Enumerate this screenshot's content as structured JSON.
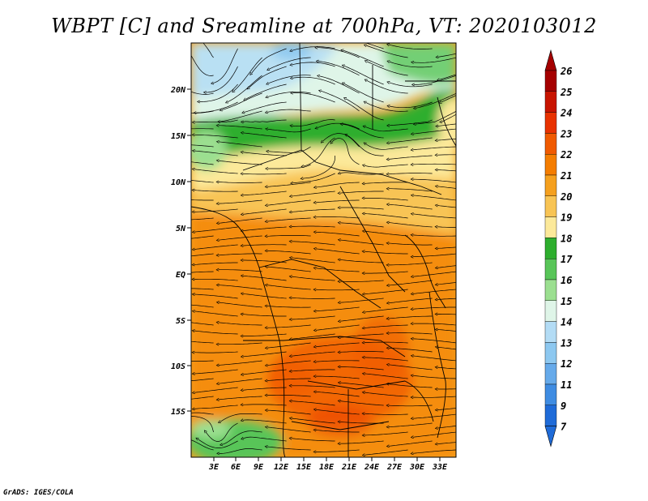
{
  "title": "WBPT [C] and Sreamline at 700hPa, VT: 2020103012",
  "credit": "GrADS: IGES/COLA",
  "map": {
    "lat_labels": [
      "20N",
      "15N",
      "10N",
      "5N",
      "EQ",
      "5S",
      "10S",
      "15S"
    ],
    "lon_labels": [
      "3E",
      "6E",
      "9E",
      "12E",
      "15E",
      "18E",
      "21E",
      "24E",
      "27E",
      "30E",
      "33E"
    ],
    "lon_range": [
      0,
      35
    ],
    "lat_range": [
      -20,
      25
    ]
  },
  "colorbar": {
    "labels": [
      "26",
      "25",
      "24",
      "23",
      "22",
      "21",
      "20",
      "19",
      "18",
      "17",
      "16",
      "15",
      "14",
      "13",
      "12",
      "11",
      "9",
      "7"
    ],
    "colors": [
      "#a50000",
      "#c81400",
      "#e83200",
      "#f05a00",
      "#f47d00",
      "#f5a01e",
      "#f8c454",
      "#fce99a",
      "#2eae2e",
      "#58c558",
      "#9bdf90",
      "#dff5e8",
      "#b3dcf5",
      "#8dc8f0",
      "#66aaea",
      "#3f8ce2",
      "#1f6bd8"
    ],
    "top_arrow_color": "#a50000",
    "bottom_arrow_color": "#1f6bd8"
  },
  "colors": {
    "background": "#ffffff",
    "streamline": "#000000"
  }
}
